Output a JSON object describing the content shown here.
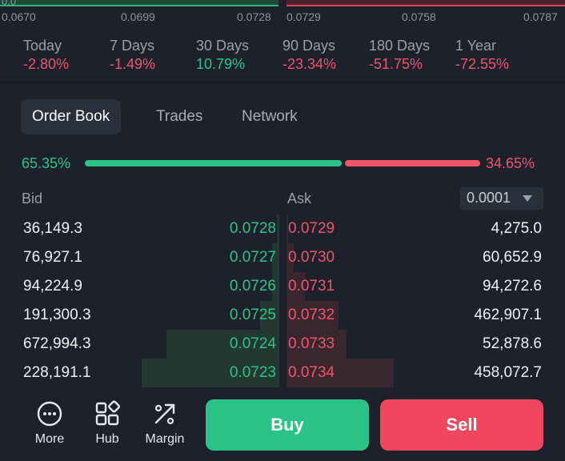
{
  "depth_chart": {
    "ticks": [
      "0.0670",
      "0.0699",
      "0.0728",
      "0.0729",
      "0.0758",
      "0.0787"
    ],
    "corner_label": "0.0"
  },
  "performance": [
    {
      "label": "Today",
      "value": "-2.80%",
      "trend": "down"
    },
    {
      "label": "7 Days",
      "value": "-1.49%",
      "trend": "down"
    },
    {
      "label": "30 Days",
      "value": "10.79%",
      "trend": "up"
    },
    {
      "label": "90 Days",
      "value": "-23.34%",
      "trend": "down"
    },
    {
      "label": "180 Days",
      "value": "-51.75%",
      "trend": "down"
    },
    {
      "label": "1 Year",
      "value": "-72.55%",
      "trend": "down"
    }
  ],
  "tabs": [
    "Order Book",
    "Trades",
    "Network"
  ],
  "active_tab": "Order Book",
  "ratio": {
    "bid_pct": "65.35%",
    "ask_pct": "34.65%",
    "bid_fraction": 0.6535
  },
  "book": {
    "bid_header": "Bid",
    "ask_header": "Ask",
    "precision": "0.0001",
    "rows": [
      {
        "bid_qty": "36,149.3",
        "bid_price": "0.0728",
        "ask_price": "0.0729",
        "ask_qty": "4,275.0",
        "bid_depth": 0.02,
        "ask_depth": 0.01
      },
      {
        "bid_qty": "76,927.1",
        "bid_price": "0.0727",
        "ask_price": "0.0730",
        "ask_qty": "60,652.9",
        "bid_depth": 0.05,
        "ask_depth": 0.06
      },
      {
        "bid_qty": "94,224.9",
        "bid_price": "0.0726",
        "ask_price": "0.0731",
        "ask_qty": "94,272.6",
        "bid_depth": 0.05,
        "ask_depth": 0.15
      },
      {
        "bid_qty": "191,300.3",
        "bid_price": "0.0725",
        "ask_price": "0.0732",
        "ask_qty": "462,907.1",
        "bid_depth": 0.14,
        "ask_depth": 0.43
      },
      {
        "bid_qty": "672,994.3",
        "bid_price": "0.0724",
        "ask_price": "0.0733",
        "ask_qty": "52,878.6",
        "bid_depth": 0.82,
        "ask_depth": 0.5
      },
      {
        "bid_qty": "228,191.1",
        "bid_price": "0.0723",
        "ask_price": "0.0734",
        "ask_qty": "458,072.7",
        "bid_depth": 1.0,
        "ask_depth": 0.89
      }
    ]
  },
  "bottom_nav": [
    {
      "label": "More",
      "icon": "more-icon"
    },
    {
      "label": "Hub",
      "icon": "hub-icon"
    },
    {
      "label": "Margin",
      "icon": "margin-icon"
    }
  ],
  "actions": {
    "buy_label": "Buy",
    "sell_label": "Sell"
  },
  "colors": {
    "green": "#2cc489",
    "red": "#f0566a",
    "background": "#1c212b"
  }
}
